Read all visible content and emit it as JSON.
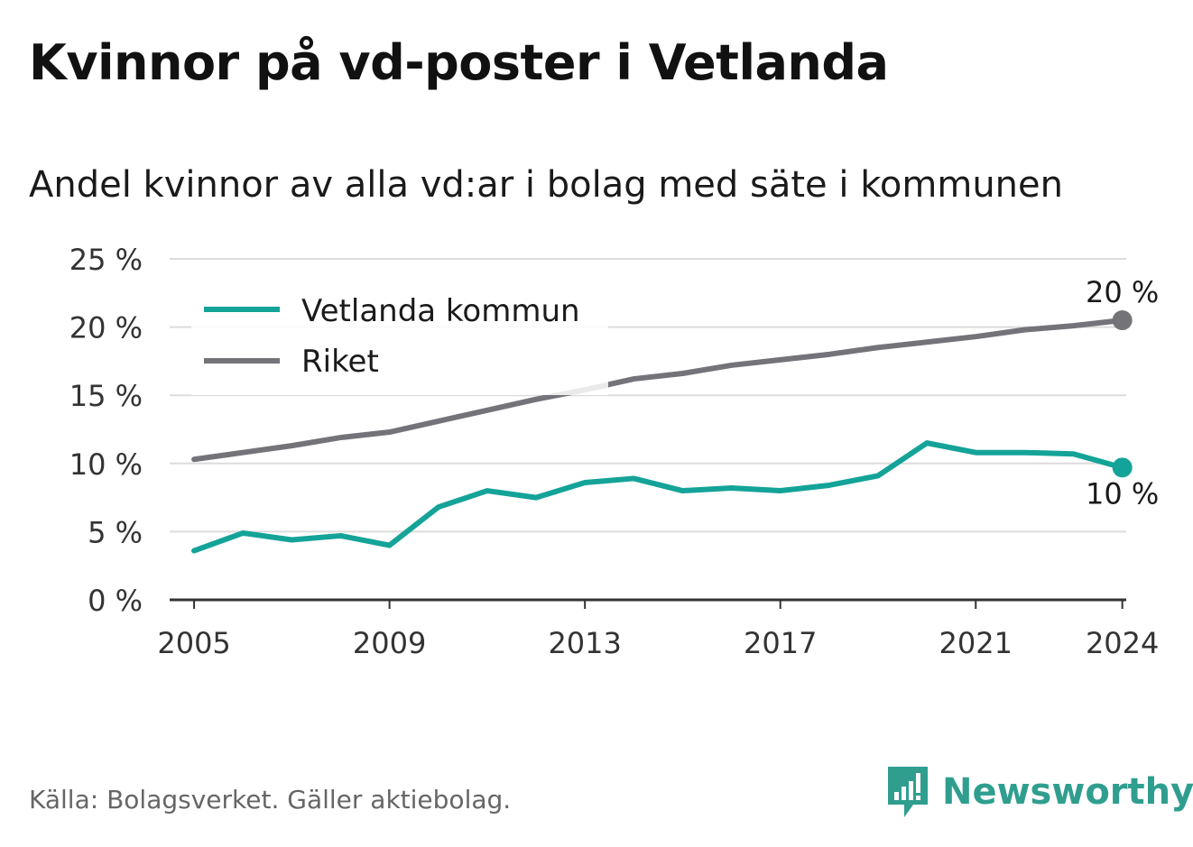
{
  "header": {
    "title": "Kvinnor på vd-poster i Vetlanda",
    "subtitle": "Andel kvinnor av alla vd:ar i bolag med säte i kommunen"
  },
  "footer": {
    "source": "Källa: Bolagsverket. Gäller aktiebolag.",
    "brand": "Newsworthy",
    "brand_color": "#2f9e8f"
  },
  "chart_data": {
    "type": "line",
    "title": "Kvinnor på vd-poster i Vetlanda",
    "subtitle": "Andel kvinnor av alla vd:ar i bolag med säte i kommunen",
    "xlabel": "",
    "ylabel": "",
    "x": [
      2005,
      2006,
      2007,
      2008,
      2009,
      2010,
      2011,
      2012,
      2013,
      2014,
      2015,
      2016,
      2017,
      2018,
      2019,
      2020,
      2021,
      2022,
      2023,
      2024
    ],
    "x_ticks": [
      "2005",
      "2009",
      "2013",
      "2017",
      "2021",
      "2024"
    ],
    "y_ticks": [
      "0 %",
      "5 %",
      "10 %",
      "15 %",
      "20 %",
      "25 %"
    ],
    "ylim": [
      0,
      25
    ],
    "grid": true,
    "legend_position": "top-left",
    "series": [
      {
        "name": "Vetlanda kommun",
        "color": "#14a398",
        "values": [
          3.6,
          4.9,
          4.4,
          4.7,
          4.0,
          6.8,
          8.0,
          7.5,
          8.6,
          8.9,
          8.0,
          8.2,
          8.0,
          8.4,
          9.1,
          11.5,
          10.8,
          10.8,
          10.7,
          9.7
        ],
        "end_label": "10 %"
      },
      {
        "name": "Riket",
        "color": "#737379",
        "values": [
          10.3,
          10.8,
          11.3,
          11.9,
          12.3,
          13.1,
          13.9,
          14.7,
          15.4,
          16.2,
          16.6,
          17.2,
          17.6,
          18.0,
          18.5,
          18.9,
          19.3,
          19.8,
          20.1,
          20.5
        ],
        "end_label": "20 %"
      }
    ]
  }
}
